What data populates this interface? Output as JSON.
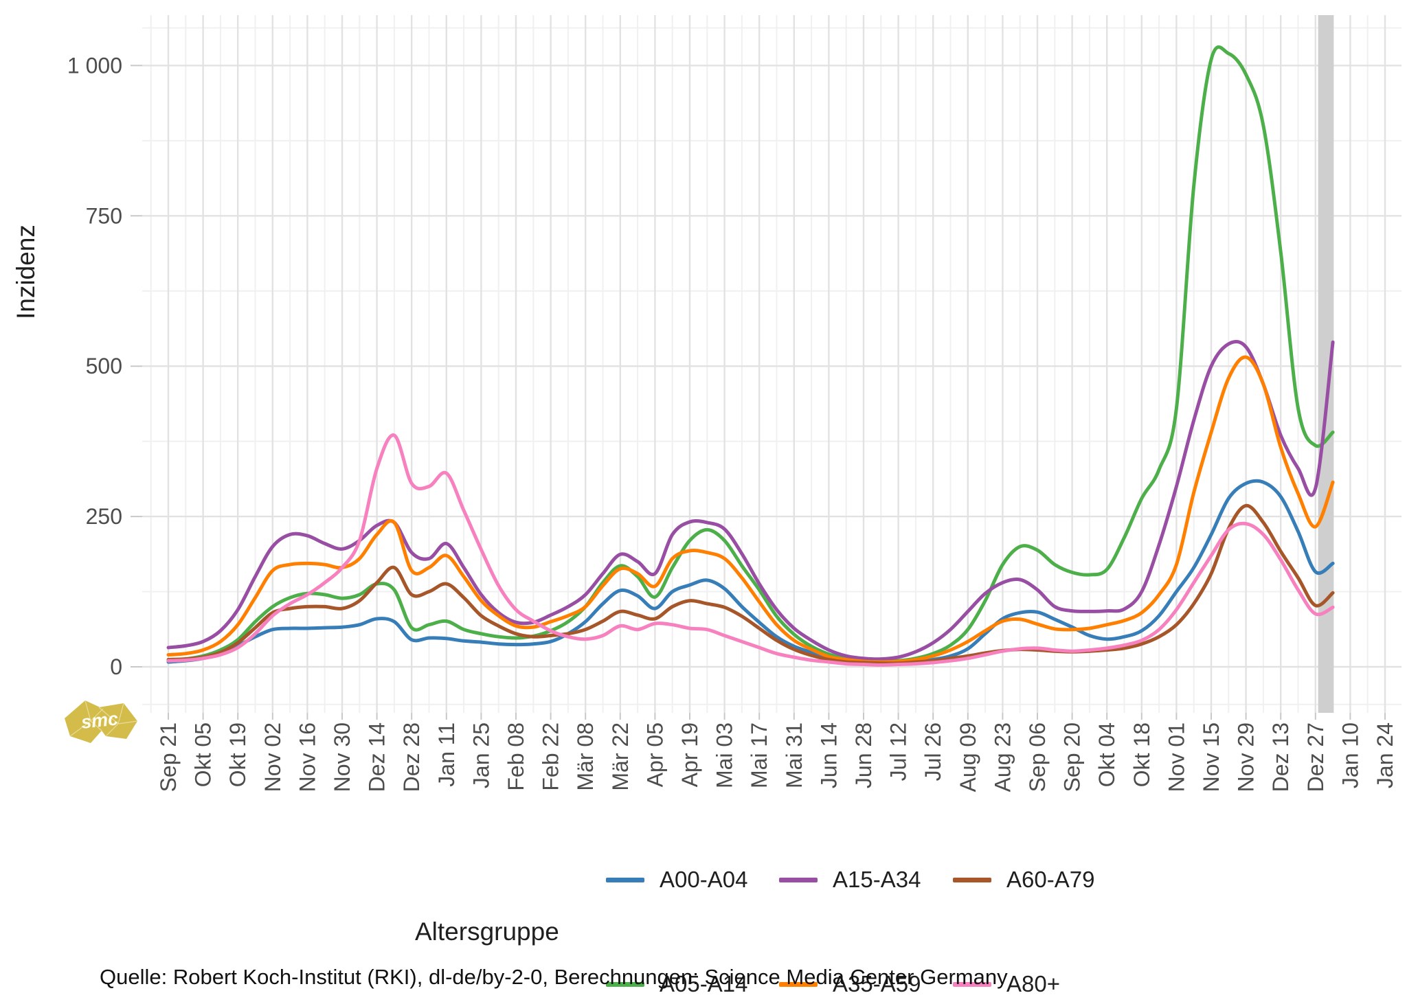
{
  "page": {
    "background": "#ffffff"
  },
  "y_axis": {
    "title": "Inzidenz",
    "tick_labels": [
      "0",
      "250",
      "500",
      "750",
      "1 000"
    ],
    "tick_values": [
      0,
      250,
      500,
      750,
      1000
    ],
    "minor_tick_values": [
      -62.5,
      125,
      375,
      625,
      875,
      1062.5
    ]
  },
  "x_axis": {
    "tick_labels": [
      "Sep 21",
      "Okt 05",
      "Okt 19",
      "Nov 02",
      "Nov 16",
      "Nov 30",
      "Dez 14",
      "Dez 28",
      "Jan 11",
      "Jan 25",
      "Feb 08",
      "Feb 22",
      "Mär 08",
      "Mär 22",
      "Apr 05",
      "Apr 19",
      "Mai 03",
      "Mai 17",
      "Mai 31",
      "Jun 14",
      "Jun 28",
      "Jul 12",
      "Jul 26",
      "Aug 09",
      "Aug 23",
      "Sep 06",
      "Sep 20",
      "Okt 04",
      "Okt 18",
      "Nov 01",
      "Nov 15",
      "Nov 29",
      "Dez 13",
      "Dez 27",
      "Jan 10",
      "Jan 24"
    ]
  },
  "legend": {
    "title": "Altersgruppe",
    "items": [
      {
        "label": "A00-A04",
        "color": "#377EB8"
      },
      {
        "label": "A05-A14",
        "color": "#4DAF4A"
      },
      {
        "label": "A15-A34",
        "color": "#984EA3"
      },
      {
        "label": "A35-A59",
        "color": "#FF7F00"
      },
      {
        "label": "A60-A79",
        "color": "#A65628"
      },
      {
        "label": "A80+",
        "color": "#F781BF"
      }
    ]
  },
  "source_note": "Quelle: Robert Koch-Institut (RKI), dl-de/by-2-0, Berechnungen: Science Media Center Germany",
  "logo": {
    "text": "smc",
    "color": "#D4BC4A"
  },
  "highlight_band": {
    "color": "#CFCFCF",
    "start_week": 66.15,
    "end_week": 67.05,
    "note": "recent incomplete reporting period"
  },
  "chart_data": {
    "type": "line",
    "title": "",
    "xlabel": "",
    "ylabel": "Inzidenz",
    "ylim": [
      0,
      1030
    ],
    "grid": "on",
    "legend_position": "bottom",
    "x_description": "weekly samples from Sep 21 2020 (week 0) to Jan 03 2022 (week 67); axis ticks every 2 weeks",
    "x_tick_labels": [
      "Sep 21",
      "Okt 05",
      "Okt 19",
      "Nov 02",
      "Nov 16",
      "Nov 30",
      "Dez 14",
      "Dez 28",
      "Jan 11",
      "Jan 25",
      "Feb 08",
      "Feb 22",
      "Mär 08",
      "Mär 22",
      "Apr 05",
      "Apr 19",
      "Mai 03",
      "Mai 17",
      "Mai 31",
      "Jun 14",
      "Jun 28",
      "Jul 12",
      "Jul 26",
      "Aug 09",
      "Aug 23",
      "Sep 06",
      "Sep 20",
      "Okt 04",
      "Okt 18",
      "Nov 01",
      "Nov 15",
      "Nov 29",
      "Dez 13",
      "Dez 27",
      "Jan 10",
      "Jan 24"
    ],
    "series": [
      {
        "name": "A00-A04",
        "color": "#377EB8",
        "values": [
          8,
          10,
          14,
          22,
          35,
          50,
          62,
          64,
          64,
          65,
          66,
          70,
          80,
          75,
          45,
          48,
          47,
          43,
          41,
          38,
          37,
          38,
          42,
          55,
          75,
          105,
          127,
          118,
          97,
          125,
          136,
          144,
          130,
          100,
          74,
          50,
          34,
          24,
          15,
          10,
          7,
          6,
          6,
          8,
          12,
          18,
          30,
          55,
          80,
          90,
          91,
          79,
          66,
          52,
          46,
          50,
          60,
          85,
          125,
          165,
          220,
          280,
          305,
          307,
          283,
          225,
          158,
          172
        ]
      },
      {
        "name": "A05-A14",
        "color": "#4DAF4A",
        "values": [
          10,
          13,
          18,
          28,
          45,
          75,
          100,
          115,
          122,
          120,
          114,
          120,
          138,
          128,
          65,
          70,
          76,
          62,
          55,
          50,
          48,
          51,
          60,
          75,
          100,
          140,
          168,
          150,
          116,
          165,
          210,
          228,
          210,
          168,
          128,
          84,
          54,
          34,
          21,
          14,
          10,
          9,
          10,
          14,
          22,
          36,
          62,
          110,
          170,
          200,
          194,
          170,
          157,
          153,
          162,
          215,
          280,
          328,
          430,
          800,
          1010,
          1020,
          985,
          900,
          690,
          430,
          368,
          390
        ]
      },
      {
        "name": "A15-A34",
        "color": "#984EA3",
        "values": [
          32,
          35,
          42,
          60,
          95,
          150,
          200,
          220,
          218,
          205,
          196,
          210,
          235,
          240,
          190,
          180,
          205,
          165,
          120,
          90,
          74,
          74,
          86,
          100,
          120,
          155,
          187,
          175,
          155,
          220,
          241,
          240,
          229,
          188,
          138,
          95,
          64,
          44,
          28,
          18,
          14,
          13,
          16,
          25,
          40,
          62,
          92,
          122,
          140,
          145,
          128,
          100,
          93,
          92,
          93,
          96,
          125,
          203,
          300,
          410,
          500,
          537,
          532,
          470,
          385,
          330,
          297,
          540
        ]
      },
      {
        "name": "A35-A59",
        "color": "#FF7F00",
        "values": [
          20,
          22,
          28,
          42,
          70,
          115,
          160,
          170,
          172,
          170,
          165,
          180,
          220,
          240,
          160,
          165,
          185,
          150,
          110,
          85,
          68,
          66,
          75,
          85,
          100,
          135,
          163,
          155,
          134,
          180,
          193,
          190,
          180,
          148,
          108,
          70,
          44,
          29,
          17,
          12,
          9,
          8,
          9,
          12,
          18,
          28,
          42,
          60,
          76,
          79,
          71,
          63,
          62,
          64,
          70,
          77,
          90,
          120,
          170,
          290,
          390,
          480,
          515,
          470,
          365,
          288,
          233,
          307
        ]
      },
      {
        "name": "A60-A79",
        "color": "#A65628",
        "values": [
          12,
          13,
          16,
          24,
          40,
          65,
          90,
          97,
          100,
          100,
          97,
          110,
          140,
          165,
          120,
          125,
          138,
          115,
          85,
          68,
          55,
          50,
          52,
          55,
          62,
          76,
          92,
          86,
          80,
          100,
          110,
          105,
          99,
          84,
          64,
          44,
          29,
          19,
          12,
          8,
          7,
          6,
          6,
          8,
          10,
          14,
          18,
          23,
          27,
          29,
          28,
          26,
          25,
          26,
          28,
          31,
          38,
          50,
          70,
          105,
          155,
          230,
          268,
          240,
          192,
          148,
          102,
          123
        ]
      },
      {
        "name": "A80+",
        "color": "#F781BF",
        "values": [
          10,
          11,
          14,
          20,
          32,
          55,
          85,
          105,
          120,
          140,
          165,
          210,
          330,
          385,
          305,
          300,
          322,
          260,
          195,
          135,
          95,
          76,
          60,
          50,
          46,
          52,
          68,
          62,
          72,
          70,
          64,
          62,
          52,
          42,
          32,
          22,
          16,
          11,
          8,
          5,
          4,
          3,
          4,
          5,
          7,
          10,
          14,
          20,
          26,
          30,
          31,
          28,
          26,
          28,
          31,
          36,
          44,
          62,
          95,
          140,
          185,
          228,
          238,
          220,
          178,
          128,
          88,
          99
        ]
      }
    ]
  }
}
